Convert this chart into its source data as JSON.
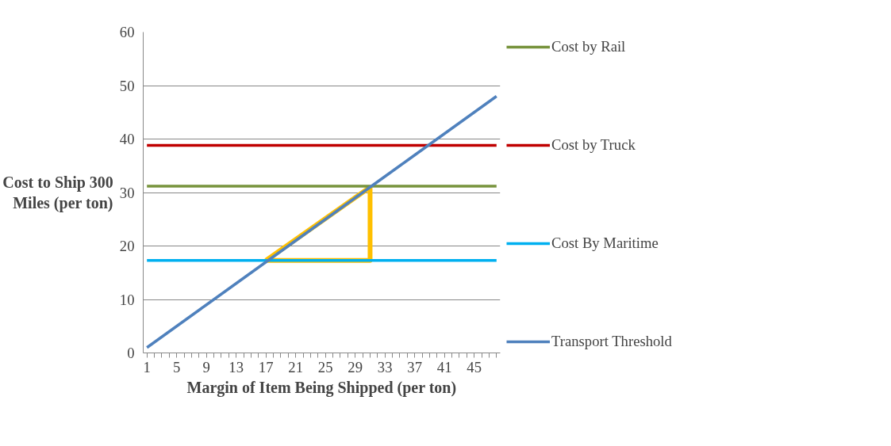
{
  "chart_data": {
    "type": "line",
    "xlabel": "Margin of Item Being Shipped (per ton)",
    "ylabel": "Cost to Ship 300 Miles (per ton)",
    "xlim": [
      0.5,
      48.5
    ],
    "xticks": [
      1,
      {
        "value": 2,
        "label": null
      },
      {
        "value": 3,
        "label": null
      },
      {
        "value": 4,
        "label": null
      },
      5,
      {
        "value": 6,
        "label": null
      },
      {
        "value": 7,
        "label": null
      },
      {
        "value": 8,
        "label": null
      },
      9,
      {
        "value": 10,
        "label": null
      },
      {
        "value": 11,
        "label": null
      },
      {
        "value": 12,
        "label": null
      },
      13,
      {
        "value": 14,
        "label": null
      },
      {
        "value": 15,
        "label": null
      },
      {
        "value": 16,
        "label": null
      },
      17,
      {
        "value": 18,
        "label": null
      },
      {
        "value": 19,
        "label": null
      },
      {
        "value": 20,
        "label": null
      },
      21,
      {
        "value": 22,
        "label": null
      },
      {
        "value": 23,
        "label": null
      },
      {
        "value": 24,
        "label": null
      },
      25,
      {
        "value": 26,
        "label": null
      },
      {
        "value": 27,
        "label": null
      },
      {
        "value": 28,
        "label": null
      },
      29,
      {
        "value": 30,
        "label": null
      },
      {
        "value": 31,
        "label": null
      },
      {
        "value": 32,
        "label": null
      },
      33,
      {
        "value": 34,
        "label": null
      },
      {
        "value": 35,
        "label": null
      },
      {
        "value": 36,
        "label": null
      },
      37,
      {
        "value": 38,
        "label": null
      },
      {
        "value": 39,
        "label": null
      },
      {
        "value": 40,
        "label": null
      },
      41,
      {
        "value": 42,
        "label": null
      },
      {
        "value": 43,
        "label": null
      },
      {
        "value": 44,
        "label": null
      },
      45,
      {
        "value": 46,
        "label": null
      },
      {
        "value": 47,
        "label": null
      },
      {
        "value": 48,
        "label": null
      }
    ],
    "ylim": [
      0,
      60
    ],
    "yticks": [
      0,
      10,
      20,
      30,
      40,
      50,
      60
    ],
    "grid": "y",
    "legend": "right",
    "series": [
      {
        "name": "Cost by Rail",
        "color": "#77933c",
        "x": [
          1,
          48
        ],
        "values": [
          31.2,
          31.2
        ]
      },
      {
        "name": "Cost by Truck",
        "color": "#c00000",
        "x": [
          1,
          48
        ],
        "values": [
          38.8,
          38.8
        ]
      },
      {
        "name": "Cost By Maritime",
        "color": "#00b0f0",
        "x": [
          1,
          48
        ],
        "values": [
          17.3,
          17.3
        ]
      },
      {
        "name": "Transport Threshold",
        "color": "#4f81bd",
        "x": [
          1,
          2,
          3,
          4,
          5,
          6,
          7,
          8,
          9,
          10,
          11,
          12,
          13,
          14,
          15,
          16,
          17,
          18,
          19,
          20,
          21,
          22,
          23,
          24,
          25,
          26,
          27,
          28,
          29,
          30,
          31,
          32,
          33,
          34,
          35,
          36,
          37,
          38,
          39,
          40,
          41,
          42,
          43,
          44,
          45,
          46,
          47,
          48
        ],
        "values": [
          1,
          2,
          3,
          4,
          5,
          6,
          7,
          8,
          9,
          10,
          11,
          12,
          13,
          14,
          15,
          16,
          17,
          18,
          19,
          20,
          21,
          22,
          23,
          24,
          25,
          26,
          27,
          28,
          29,
          30,
          31,
          32,
          33,
          34,
          35,
          36,
          37,
          38,
          39,
          40,
          41,
          42,
          43,
          44,
          45,
          46,
          47,
          48
        ]
      },
      {
        "color": "#ffc000",
        "x": [
          17,
          31,
          31
        ],
        "values": [
          17.3,
          17.3,
          31
        ]
      },
      {
        "color": "#ffc000",
        "x": [
          17,
          31
        ],
        "values": [
          17.3,
          31
        ]
      }
    ]
  }
}
